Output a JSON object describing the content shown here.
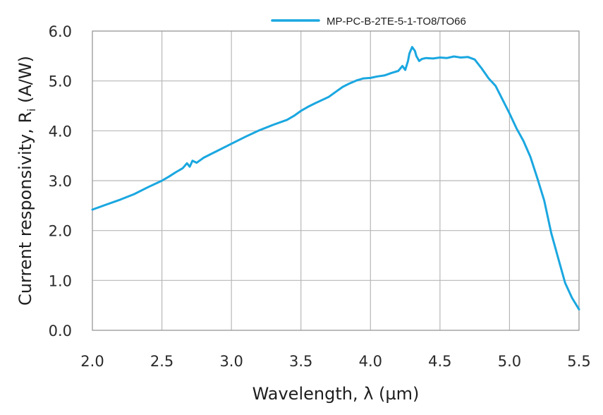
{
  "chart_data": {
    "type": "line",
    "title": "",
    "xlabel": "Wavelength, λ (µm)",
    "ylabel_main": "Current responsivity, R",
    "ylabel_sub": "i",
    "ylabel_unit": " (A/W)",
    "xlim": [
      2.0,
      5.5
    ],
    "ylim": [
      0.0,
      6.0
    ],
    "x_ticks": [
      "2.0",
      "2.5",
      "3.0",
      "3.5",
      "4.0",
      "4.5",
      "5.0",
      "5.5"
    ],
    "y_ticks": [
      "0.0",
      "1.0",
      "2.0",
      "3.0",
      "4.0",
      "5.0",
      "6.0"
    ],
    "grid": true,
    "legend_position": "top-center",
    "series": [
      {
        "name": "MP-PC-B-2TE-5-1-TO8/TO66",
        "color": "#1aa7e0",
        "x": [
          2.0,
          2.1,
          2.2,
          2.3,
          2.4,
          2.5,
          2.55,
          2.6,
          2.65,
          2.68,
          2.7,
          2.72,
          2.75,
          2.78,
          2.8,
          2.85,
          2.9,
          3.0,
          3.1,
          3.2,
          3.3,
          3.4,
          3.45,
          3.5,
          3.55,
          3.6,
          3.7,
          3.75,
          3.8,
          3.85,
          3.9,
          3.95,
          4.0,
          4.05,
          4.1,
          4.15,
          4.2,
          4.23,
          4.25,
          4.27,
          4.28,
          4.3,
          4.32,
          4.33,
          4.35,
          4.37,
          4.4,
          4.45,
          4.5,
          4.55,
          4.6,
          4.65,
          4.7,
          4.75,
          4.8,
          4.85,
          4.9,
          5.0,
          5.05,
          5.1,
          5.15,
          5.2,
          5.25,
          5.3,
          5.35,
          5.4,
          5.45,
          5.5
        ],
        "values": [
          2.42,
          2.52,
          2.62,
          2.73,
          2.87,
          3.0,
          3.08,
          3.17,
          3.25,
          3.35,
          3.28,
          3.4,
          3.36,
          3.42,
          3.46,
          3.53,
          3.6,
          3.74,
          3.88,
          4.01,
          4.12,
          4.22,
          4.3,
          4.4,
          4.48,
          4.55,
          4.68,
          4.78,
          4.88,
          4.95,
          5.01,
          5.05,
          5.06,
          5.09,
          5.11,
          5.16,
          5.2,
          5.3,
          5.22,
          5.4,
          5.55,
          5.68,
          5.6,
          5.5,
          5.4,
          5.44,
          5.46,
          5.45,
          5.47,
          5.46,
          5.49,
          5.47,
          5.48,
          5.43,
          5.25,
          5.05,
          4.9,
          4.35,
          4.05,
          3.8,
          3.48,
          3.05,
          2.6,
          1.95,
          1.45,
          0.95,
          0.65,
          0.42
        ]
      }
    ]
  }
}
